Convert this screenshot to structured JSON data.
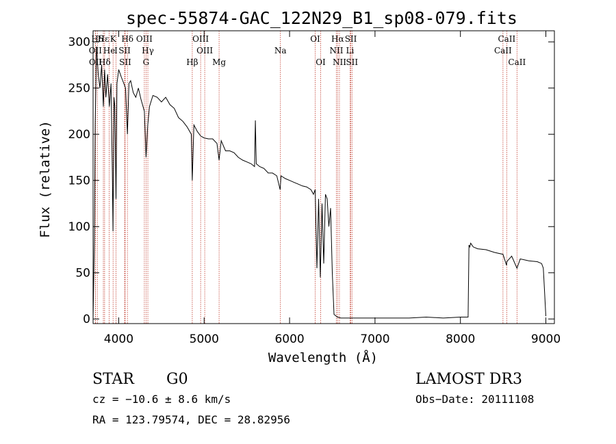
{
  "chart_data": {
    "type": "line",
    "title": "spec-55874-GAC_122N29_B1_sp08-079.fits",
    "xlabel": "Wavelength (Å)",
    "ylabel": "Flux (relative)",
    "xlim": [
      3700,
      9100
    ],
    "ylim": [
      -5,
      312
    ],
    "xticks": [
      4000,
      5000,
      6000,
      7000,
      8000,
      9000
    ],
    "xtick_labels": [
      "4000",
      "5000",
      "6000",
      "7000",
      "8000",
      "9000"
    ],
    "yticks": [
      0,
      50,
      100,
      150,
      200,
      250,
      300
    ],
    "ytick_labels": [
      "0",
      "50",
      "100",
      "150",
      "200",
      "250",
      "300"
    ],
    "series": [
      {
        "name": "spectrum",
        "x": [
          3700,
          3715,
          3725,
          3740,
          3760,
          3780,
          3800,
          3820,
          3835,
          3850,
          3870,
          3890,
          3910,
          3925,
          3933,
          3945,
          3955,
          3968,
          3980,
          4000,
          4030,
          4060,
          4080,
          4102,
          4120,
          4140,
          4170,
          4200,
          4230,
          4260,
          4300,
          4320,
          4340,
          4360,
          4400,
          4450,
          4500,
          4550,
          4600,
          4650,
          4700,
          4750,
          4800,
          4850,
          4861,
          4880,
          4920,
          4960,
          5000,
          5050,
          5100,
          5150,
          5175,
          5200,
          5250,
          5300,
          5350,
          5400,
          5450,
          5500,
          5550,
          5590,
          5600,
          5610,
          5650,
          5700,
          5750,
          5800,
          5850,
          5890,
          5900,
          5950,
          6000,
          6050,
          6100,
          6150,
          6200,
          6250,
          6280,
          6300,
          6320,
          6340,
          6360,
          6380,
          6400,
          6420,
          6440,
          6460,
          6480,
          6500,
          6520,
          6560,
          6600,
          6700,
          6800,
          7000,
          7200,
          7400,
          7600,
          7800,
          8000,
          8090,
          8100,
          8110,
          8120,
          8150,
          8200,
          8300,
          8400,
          8498,
          8540,
          8542,
          8600,
          8662,
          8700,
          8800,
          8900,
          8950,
          8970,
          8985,
          9000
        ],
        "y": [
          0,
          85,
          210,
          295,
          265,
          250,
          275,
          230,
          270,
          240,
          265,
          230,
          255,
          160,
          95,
          240,
          230,
          130,
          255,
          270,
          262,
          255,
          250,
          200,
          255,
          258,
          245,
          240,
          250,
          238,
          225,
          175,
          210,
          230,
          242,
          240,
          235,
          240,
          232,
          228,
          218,
          214,
          208,
          200,
          150,
          210,
          203,
          198,
          196,
          195,
          195,
          190,
          172,
          193,
          182,
          182,
          180,
          175,
          172,
          170,
          168,
          165,
          215,
          168,
          165,
          163,
          158,
          158,
          155,
          140,
          155,
          152,
          150,
          148,
          146,
          144,
          143,
          140,
          135,
          140,
          55,
          130,
          45,
          125,
          60,
          135,
          130,
          100,
          120,
          50,
          5,
          2,
          1,
          1,
          1,
          1,
          1,
          1,
          2,
          1,
          2,
          2,
          80,
          78,
          82,
          78,
          76,
          75,
          72,
          70,
          58,
          62,
          68,
          55,
          65,
          63,
          62,
          60,
          55,
          30,
          3
        ]
      }
    ],
    "emission_lines": [
      {
        "name": "Hδ",
        "wave": 3750,
        "row": 0
      },
      {
        "name": "OII",
        "wave": 3727,
        "row": 1
      },
      {
        "name": "OII",
        "wave": 3729,
        "row": 2
      },
      {
        "name": "Hε",
        "wave": 3820,
        "row": 0
      },
      {
        "name": "He",
        "wave": 3889,
        "row": 1
      },
      {
        "name": "Hδ",
        "wave": 3835,
        "row": 2
      },
      {
        "name": "K",
        "wave": 3934,
        "row": 0
      },
      {
        "name": "I",
        "wave": 3968,
        "row": 1
      },
      {
        "name": "SII",
        "wave": 4069,
        "row": 1
      },
      {
        "name": "SII",
        "wave": 4076,
        "row": 2
      },
      {
        "name": "Hδ",
        "wave": 4102,
        "row": 0
      },
      {
        "name": "OIII",
        "wave": 4300,
        "row": 0
      },
      {
        "name": "Hγ",
        "wave": 4341,
        "row": 1
      },
      {
        "name": "G",
        "wave": 4320,
        "row": 2
      },
      {
        "name": "OIII",
        "wave": 4959,
        "row": 0
      },
      {
        "name": "OIII",
        "wave": 5007,
        "row": 1
      },
      {
        "name": "Hβ",
        "wave": 4861,
        "row": 2
      },
      {
        "name": "Mg",
        "wave": 5175,
        "row": 2
      },
      {
        "name": "Na",
        "wave": 5893,
        "row": 1
      },
      {
        "name": "OI",
        "wave": 6300,
        "row": 0
      },
      {
        "name": "OI",
        "wave": 6364,
        "row": 2
      },
      {
        "name": "Hα",
        "wave": 6563,
        "row": 0
      },
      {
        "name": "NII",
        "wave": 6548,
        "row": 1
      },
      {
        "name": "NII",
        "wave": 6584,
        "row": 2
      },
      {
        "name": "SII",
        "wave": 6717,
        "row": 0
      },
      {
        "name": "Li",
        "wave": 6708,
        "row": 1
      },
      {
        "name": "SII",
        "wave": 6731,
        "row": 2
      },
      {
        "name": "CaII",
        "wave": 8542,
        "row": 0
      },
      {
        "name": "CaII",
        "wave": 8498,
        "row": 1
      },
      {
        "name": "CaII",
        "wave": 8662,
        "row": 2
      }
    ]
  },
  "info": {
    "object_class": "STAR",
    "subclass": "G0",
    "survey": "LAMOST DR3",
    "cz": "cz = −10.6 ± 8.6 km/s",
    "obs_date": "Obs−Date: 20111108",
    "coords": "RA = 123.79574, DEC =  28.82956"
  },
  "colors": {
    "line_marker": "#c0392b",
    "spectrum": "#000000",
    "axis": "#000000"
  }
}
